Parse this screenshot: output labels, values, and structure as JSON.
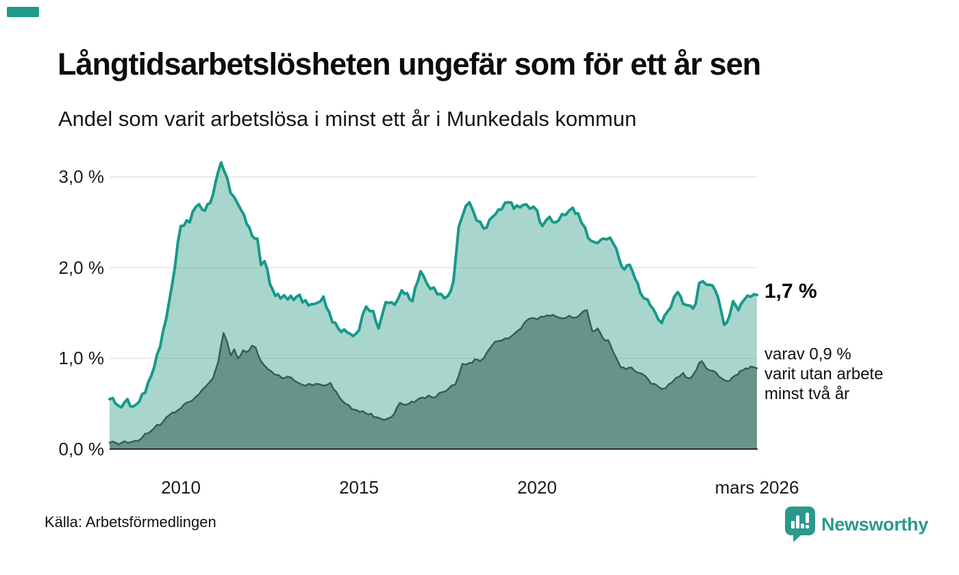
{
  "brand": {
    "dash_color": "#1d9b8b",
    "logo_text": "Newsworthy",
    "logo_color": "#2b998b",
    "logo_icon": "newsworthy-speech-bubble-chart-icon"
  },
  "header": {
    "title": "Långtidsarbetslösheten ungefär som för ett år sen",
    "subtitle": "Andel som varit arbetslösa i minst ett år i Munkedals kommun"
  },
  "annotations": {
    "latest_one_year": "1,7 %",
    "two_year_line1": "varav 0,9 %",
    "two_year_line2": "varit utan arbete",
    "two_year_line3": "minst två år"
  },
  "footer": {
    "source": "Källa: Arbetsförmedlingen"
  },
  "chart_data": {
    "type": "area",
    "title": "Långtidsarbetslösheten ungefär som för ett år sen",
    "subtitle": "Andel som varit arbetslösa i minst ett år i Munkedals kommun",
    "unit": "%",
    "grid": true,
    "legend_position": "none",
    "x_axis": {
      "range": [
        2008.0,
        2026.17
      ],
      "ticks": [
        {
          "label": "2010",
          "year": 2010
        },
        {
          "label": "2015",
          "year": 2015
        },
        {
          "label": "2020",
          "year": 2020
        },
        {
          "label": "mars 2026",
          "year": 2026.17
        }
      ]
    },
    "y_axis": {
      "range": [
        0,
        3.2
      ],
      "values": [
        0,
        1,
        2,
        3
      ],
      "ticks": [
        "0,0 %",
        "1,0 %",
        "2,0 %",
        "3,0 %"
      ]
    },
    "gridline_color": "#e2e2e2",
    "axis_color": "#2b2b2b",
    "series": [
      {
        "name": "Andel som varit arbetslösa i minst ett år",
        "latest_label": "1,7 %",
        "latest_value": 1.7,
        "line_color": "#18998b",
        "fill_color": "rgba(97,180,163,0.55)",
        "line_width": 4,
        "points": [
          [
            2008.0,
            0.55
          ],
          [
            2008.17,
            0.5
          ],
          [
            2008.33,
            0.46
          ],
          [
            2008.5,
            0.55
          ],
          [
            2008.67,
            0.47
          ],
          [
            2008.83,
            0.52
          ],
          [
            2009.0,
            0.62
          ],
          [
            2009.25,
            0.9
          ],
          [
            2009.5,
            1.3
          ],
          [
            2009.75,
            1.8
          ],
          [
            2010.0,
            2.46
          ],
          [
            2010.25,
            2.5
          ],
          [
            2010.42,
            2.67
          ],
          [
            2010.6,
            2.64
          ],
          [
            2010.75,
            2.7
          ],
          [
            2010.9,
            2.8
          ],
          [
            2011.05,
            3.06
          ],
          [
            2011.13,
            3.16
          ],
          [
            2011.2,
            3.08
          ],
          [
            2011.3,
            2.99
          ],
          [
            2011.4,
            2.82
          ],
          [
            2011.55,
            2.74
          ],
          [
            2011.7,
            2.63
          ],
          [
            2011.85,
            2.48
          ],
          [
            2012.0,
            2.35
          ],
          [
            2012.15,
            2.32
          ],
          [
            2012.25,
            2.03
          ],
          [
            2012.35,
            2.07
          ],
          [
            2012.5,
            1.82
          ],
          [
            2012.65,
            1.69
          ],
          [
            2012.8,
            1.66
          ],
          [
            2013.0,
            1.65
          ],
          [
            2013.25,
            1.68
          ],
          [
            2013.5,
            1.64
          ],
          [
            2013.75,
            1.6
          ],
          [
            2014.0,
            1.68
          ],
          [
            2014.25,
            1.4
          ],
          [
            2014.5,
            1.29
          ],
          [
            2014.75,
            1.27
          ],
          [
            2015.0,
            1.31
          ],
          [
            2015.2,
            1.57
          ],
          [
            2015.4,
            1.52
          ],
          [
            2015.55,
            1.33
          ],
          [
            2015.75,
            1.62
          ],
          [
            2016.0,
            1.59
          ],
          [
            2016.2,
            1.75
          ],
          [
            2016.35,
            1.72
          ],
          [
            2016.5,
            1.63
          ],
          [
            2016.73,
            1.96
          ],
          [
            2016.9,
            1.83
          ],
          [
            2017.1,
            1.78
          ],
          [
            2017.3,
            1.71
          ],
          [
            2017.5,
            1.69
          ],
          [
            2017.65,
            1.85
          ],
          [
            2017.8,
            2.45
          ],
          [
            2018.0,
            2.68
          ],
          [
            2018.1,
            2.72
          ],
          [
            2018.3,
            2.52
          ],
          [
            2018.5,
            2.43
          ],
          [
            2018.75,
            2.56
          ],
          [
            2019.0,
            2.64
          ],
          [
            2019.2,
            2.72
          ],
          [
            2019.35,
            2.65
          ],
          [
            2019.6,
            2.69
          ],
          [
            2019.8,
            2.65
          ],
          [
            2020.0,
            2.63
          ],
          [
            2020.15,
            2.46
          ],
          [
            2020.35,
            2.56
          ],
          [
            2020.6,
            2.52
          ],
          [
            2020.8,
            2.58
          ],
          [
            2021.0,
            2.66
          ],
          [
            2021.15,
            2.6
          ],
          [
            2021.35,
            2.44
          ],
          [
            2021.5,
            2.3
          ],
          [
            2021.7,
            2.27
          ],
          [
            2021.85,
            2.32
          ],
          [
            2022.05,
            2.33
          ],
          [
            2022.15,
            2.26
          ],
          [
            2022.3,
            2.1
          ],
          [
            2022.45,
            1.98
          ],
          [
            2022.6,
            2.03
          ],
          [
            2022.75,
            1.88
          ],
          [
            2022.9,
            1.72
          ],
          [
            2023.1,
            1.65
          ],
          [
            2023.25,
            1.55
          ],
          [
            2023.4,
            1.43
          ],
          [
            2023.5,
            1.39
          ],
          [
            2023.65,
            1.51
          ],
          [
            2023.85,
            1.68
          ],
          [
            2023.95,
            1.73
          ],
          [
            2024.1,
            1.6
          ],
          [
            2024.3,
            1.58
          ],
          [
            2024.45,
            1.6
          ],
          [
            2024.55,
            1.83
          ],
          [
            2024.65,
            1.85
          ],
          [
            2024.85,
            1.81
          ],
          [
            2025.0,
            1.75
          ],
          [
            2025.15,
            1.55
          ],
          [
            2025.25,
            1.37
          ],
          [
            2025.4,
            1.47
          ],
          [
            2025.5,
            1.63
          ],
          [
            2025.65,
            1.53
          ],
          [
            2025.8,
            1.64
          ],
          [
            2025.9,
            1.69
          ],
          [
            2026.0,
            1.68
          ],
          [
            2026.17,
            1.7
          ]
        ]
      },
      {
        "name": "varav utan arbete minst två år",
        "latest_label": "0,9 %",
        "latest_value": 0.9,
        "line_color": "#3c5a54",
        "fill_color": "rgba(45,86,77,0.52)",
        "line_width": 2.5,
        "points": [
          [
            2008.0,
            0.07
          ],
          [
            2008.5,
            0.07
          ],
          [
            2008.8,
            0.09
          ],
          [
            2009.0,
            0.17
          ],
          [
            2009.25,
            0.23
          ],
          [
            2009.5,
            0.3
          ],
          [
            2009.75,
            0.4
          ],
          [
            2010.0,
            0.45
          ],
          [
            2010.25,
            0.52
          ],
          [
            2010.5,
            0.6
          ],
          [
            2010.7,
            0.69
          ],
          [
            2010.9,
            0.78
          ],
          [
            2011.05,
            0.96
          ],
          [
            2011.2,
            1.28
          ],
          [
            2011.3,
            1.18
          ],
          [
            2011.4,
            1.03
          ],
          [
            2011.5,
            1.1
          ],
          [
            2011.6,
            1.0
          ],
          [
            2011.75,
            1.09
          ],
          [
            2011.9,
            1.08
          ],
          [
            2012.0,
            1.14
          ],
          [
            2012.1,
            1.12
          ],
          [
            2012.25,
            0.97
          ],
          [
            2012.45,
            0.88
          ],
          [
            2012.65,
            0.82
          ],
          [
            2012.85,
            0.78
          ],
          [
            2013.0,
            0.8
          ],
          [
            2013.2,
            0.75
          ],
          [
            2013.4,
            0.71
          ],
          [
            2013.6,
            0.72
          ],
          [
            2013.8,
            0.72
          ],
          [
            2014.0,
            0.7
          ],
          [
            2014.2,
            0.73
          ],
          [
            2014.45,
            0.57
          ],
          [
            2014.8,
            0.44
          ],
          [
            2015.1,
            0.42
          ],
          [
            2015.5,
            0.35
          ],
          [
            2015.7,
            0.32
          ],
          [
            2015.9,
            0.35
          ],
          [
            2016.15,
            0.51
          ],
          [
            2016.4,
            0.5
          ],
          [
            2016.7,
            0.56
          ],
          [
            2016.95,
            0.59
          ],
          [
            2017.15,
            0.57
          ],
          [
            2017.35,
            0.63
          ],
          [
            2017.5,
            0.66
          ],
          [
            2017.7,
            0.71
          ],
          [
            2017.9,
            0.94
          ],
          [
            2018.1,
            0.95
          ],
          [
            2018.25,
            0.99
          ],
          [
            2018.4,
            0.97
          ],
          [
            2018.5,
            1.0
          ],
          [
            2018.75,
            1.15
          ],
          [
            2018.9,
            1.19
          ],
          [
            2019.1,
            1.22
          ],
          [
            2019.3,
            1.25
          ],
          [
            2019.55,
            1.33
          ],
          [
            2019.8,
            1.44
          ],
          [
            2020.0,
            1.43
          ],
          [
            2020.2,
            1.46
          ],
          [
            2020.45,
            1.48
          ],
          [
            2020.7,
            1.44
          ],
          [
            2020.9,
            1.47
          ],
          [
            2021.1,
            1.45
          ],
          [
            2021.25,
            1.5
          ],
          [
            2021.4,
            1.53
          ],
          [
            2021.55,
            1.3
          ],
          [
            2021.7,
            1.33
          ],
          [
            2021.85,
            1.22
          ],
          [
            2022.0,
            1.2
          ],
          [
            2022.15,
            1.06
          ],
          [
            2022.35,
            0.9
          ],
          [
            2022.5,
            0.88
          ],
          [
            2022.65,
            0.9
          ],
          [
            2022.85,
            0.84
          ],
          [
            2023.05,
            0.8
          ],
          [
            2023.2,
            0.72
          ],
          [
            2023.4,
            0.69
          ],
          [
            2023.6,
            0.67
          ],
          [
            2023.8,
            0.74
          ],
          [
            2024.0,
            0.8
          ],
          [
            2024.1,
            0.84
          ],
          [
            2024.25,
            0.78
          ],
          [
            2024.4,
            0.83
          ],
          [
            2024.55,
            0.95
          ],
          [
            2024.62,
            0.97
          ],
          [
            2024.75,
            0.89
          ],
          [
            2024.95,
            0.86
          ],
          [
            2025.1,
            0.8
          ],
          [
            2025.25,
            0.76
          ],
          [
            2025.4,
            0.75
          ],
          [
            2025.55,
            0.81
          ],
          [
            2025.7,
            0.86
          ],
          [
            2025.85,
            0.89
          ],
          [
            2026.0,
            0.91
          ],
          [
            2026.17,
            0.89
          ]
        ]
      }
    ]
  }
}
